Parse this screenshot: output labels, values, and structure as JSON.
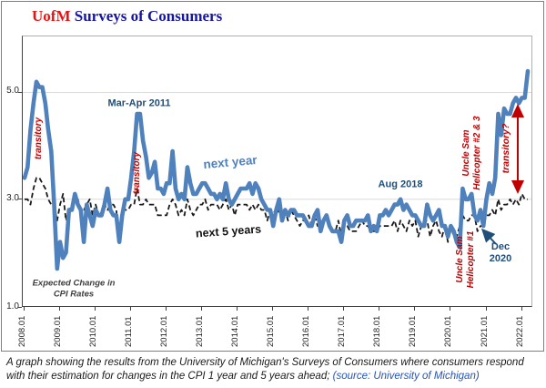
{
  "title": {
    "brand": "UofM",
    "rest": " Surveys of Consumers"
  },
  "colors": {
    "title_brand": "#ee1111",
    "title_rest": "#1515a8",
    "next_year_line": "#4f81bd",
    "next_5_years_line": "#1a1a1a",
    "annotation_red": "#c00000",
    "annotation_navy": "#1f4e79",
    "caption_source_blue": "#2653b4",
    "gridline": "#dcdcdc"
  },
  "chart_data": {
    "type": "line",
    "x_unit": "monthly observations",
    "x_range": [
      "2008.01",
      "2022.03"
    ],
    "x_tick_labels": [
      "2008.01",
      "2009.01",
      "2010.01",
      "2011.01",
      "2012.01",
      "2013.01",
      "2014.01",
      "2015.01",
      "2016.01",
      "2017.01",
      "2018.01",
      "2019.01",
      "2020.01",
      "2021.01",
      "2022.01"
    ],
    "y_tick_labels": [
      "1.0",
      "3.0",
      "5.0"
    ],
    "y_ticks": [
      1.0,
      3.0,
      5.0
    ],
    "ylim": [
      1.0,
      6.05
    ],
    "gridlines_at": [
      3.0,
      5.0
    ],
    "legend_position": "inline-labels",
    "series": [
      {
        "name": "next year",
        "color": "#4f81bd",
        "style": "solid",
        "values": [
          3.4,
          3.6,
          4.3,
          4.8,
          5.2,
          5.1,
          5.1,
          4.8,
          4.3,
          3.9,
          2.9,
          1.7,
          2.2,
          1.9,
          2.0,
          2.8,
          2.8,
          3.1,
          2.9,
          2.8,
          2.2,
          2.9,
          2.7,
          2.5,
          2.8,
          2.7,
          2.7,
          2.9,
          3.2,
          2.8,
          2.7,
          2.7,
          2.2,
          2.7,
          3.0,
          3.0,
          3.4,
          3.9,
          4.6,
          4.6,
          4.1,
          3.8,
          3.4,
          3.5,
          3.7,
          3.2,
          3.2,
          3.1,
          3.3,
          3.3,
          3.9,
          3.2,
          3.0,
          3.1,
          3.0,
          3.6,
          3.3,
          3.1,
          3.1,
          3.2,
          3.3,
          3.3,
          3.2,
          3.1,
          3.1,
          3.0,
          3.1,
          3.0,
          3.3,
          3.0,
          2.9,
          3.0,
          3.1,
          3.2,
          3.2,
          3.2,
          3.3,
          3.1,
          3.3,
          3.2,
          3.0,
          2.9,
          2.8,
          2.8,
          2.5,
          2.8,
          3.0,
          2.6,
          2.8,
          2.7,
          2.8,
          2.8,
          2.7,
          2.7,
          2.7,
          2.6,
          2.5,
          2.5,
          2.7,
          2.8,
          2.4,
          2.6,
          2.7,
          2.5,
          2.4,
          2.4,
          2.4,
          2.2,
          2.6,
          2.7,
          2.5,
          2.5,
          2.6,
          2.6,
          2.6,
          2.6,
          2.7,
          2.4,
          2.5,
          2.4,
          2.7,
          2.7,
          2.8,
          2.7,
          2.8,
          2.9,
          2.9,
          3.0,
          2.8,
          2.9,
          2.8,
          2.7,
          2.7,
          2.6,
          2.5,
          2.5,
          2.9,
          2.7,
          2.6,
          2.7,
          2.8,
          2.5,
          2.5,
          2.3,
          2.5,
          2.4,
          2.2,
          2.1,
          3.2,
          3.0,
          3.0,
          3.1,
          2.7,
          2.6,
          2.8,
          2.5,
          3.0,
          3.3,
          3.1,
          3.4,
          4.6,
          4.2,
          4.7,
          4.6,
          4.6,
          4.8,
          4.9,
          4.8,
          4.9,
          4.9,
          5.4
        ]
      },
      {
        "name": "next 5 years",
        "color": "#1a1a1a",
        "style": "dashed",
        "values": [
          3.0,
          3.0,
          2.9,
          3.2,
          3.4,
          3.4,
          3.3,
          3.2,
          3.0,
          2.9,
          2.9,
          2.6,
          2.9,
          3.1,
          2.6,
          2.8,
          2.9,
          3.0,
          3.0,
          2.8,
          2.8,
          2.9,
          3.0,
          2.7,
          2.9,
          2.7,
          2.7,
          2.9,
          2.8,
          2.9,
          2.9,
          2.8,
          2.2,
          2.8,
          2.8,
          2.8,
          2.9,
          2.9,
          3.2,
          2.9,
          2.9,
          3.0,
          2.9,
          2.9,
          2.9,
          2.7,
          2.7,
          2.7,
          2.7,
          2.9,
          3.0,
          2.9,
          2.7,
          2.8,
          2.7,
          3.0,
          2.8,
          2.7,
          2.8,
          2.9,
          2.9,
          3.0,
          2.8,
          2.9,
          2.9,
          2.9,
          2.8,
          2.9,
          3.0,
          2.8,
          2.9,
          2.7,
          2.9,
          2.9,
          2.9,
          2.9,
          2.8,
          2.9,
          2.8,
          2.9,
          2.8,
          2.8,
          2.6,
          2.8,
          2.8,
          2.7,
          2.8,
          2.6,
          2.8,
          2.6,
          2.8,
          2.7,
          2.6,
          2.5,
          2.6,
          2.6,
          2.7,
          2.5,
          2.7,
          2.5,
          2.5,
          2.6,
          2.6,
          2.5,
          2.4,
          2.4,
          2.6,
          2.3,
          2.5,
          2.5,
          2.4,
          2.4,
          2.4,
          2.5,
          2.6,
          2.5,
          2.5,
          2.4,
          2.4,
          2.4,
          2.5,
          2.5,
          2.5,
          2.5,
          2.5,
          2.6,
          2.4,
          2.6,
          2.5,
          2.4,
          2.6,
          2.5,
          2.6,
          2.3,
          2.5,
          2.6,
          2.6,
          2.3,
          2.5,
          2.6,
          2.4,
          2.3,
          2.5,
          2.2,
          2.5,
          2.3,
          2.3,
          2.5,
          2.7,
          2.6,
          2.6,
          2.7,
          2.7,
          2.4,
          2.5,
          2.5,
          2.7,
          2.7,
          2.8,
          2.7,
          3.0,
          2.8,
          2.9,
          2.9,
          3.0,
          2.9,
          3.0,
          2.9,
          3.1,
          3.0,
          3.0
        ]
      }
    ],
    "annotations": {
      "transitory_2008": "transitory",
      "mar_apr_2011": "Mar-Apr 2011",
      "transitory_2011": "transitory",
      "next_year_label": "next year",
      "next_5_years_label": "next 5 years",
      "aug_2018": "Aug 2018",
      "uncle_sam_23_line1": "Uncle Sam",
      "uncle_sam_23_line2": "Helicopter #2 & 3",
      "transitory_question": "transitory?",
      "uncle_sam_1_line1": "Uncle Sam",
      "uncle_sam_1_line2": "Helicopter #1",
      "dec_2020_line1": "Dec",
      "dec_2020_line2": "2020",
      "axis_note_line1": "Expected Change in",
      "axis_note_line2": "CPI Rates"
    }
  },
  "caption": {
    "line1": "A graph showing the results from the University of Michigan's Surveys of Consumers where consumers respond",
    "line2_black": "with their estimation for changes in the CPI 1 year and 5 years ahead; ",
    "source": "(source: University of Michigan)"
  }
}
